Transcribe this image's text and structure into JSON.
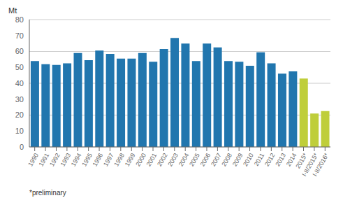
{
  "chart_data": {
    "type": "bar",
    "ylabel": "Mt",
    "annotations": [
      "*preliminary"
    ],
    "categories": [
      "1990",
      "1991",
      "1992",
      "1993",
      "1994",
      "1995",
      "1996",
      "1997",
      "1998",
      "1999",
      "2000",
      "2001",
      "2002",
      "2003",
      "2004",
      "2005",
      "2006",
      "2007",
      "2008",
      "2009",
      "2010",
      "2011",
      "2012",
      "2013",
      "2014",
      "2015*",
      "I-II/2015*",
      "I-II/2016*"
    ],
    "values": [
      54,
      52,
      51.5,
      52.5,
      59,
      54.5,
      60.5,
      58.5,
      55.5,
      55.5,
      59,
      53.5,
      61.5,
      68.5,
      65,
      54,
      65,
      62.5,
      54,
      53.5,
      51,
      59.5,
      52.5,
      46,
      47.5,
      43,
      21,
      22.5
    ],
    "colors": [
      "#2176AE",
      "#2176AE",
      "#2176AE",
      "#2176AE",
      "#2176AE",
      "#2176AE",
      "#2176AE",
      "#2176AE",
      "#2176AE",
      "#2176AE",
      "#2176AE",
      "#2176AE",
      "#2176AE",
      "#2176AE",
      "#2176AE",
      "#2176AE",
      "#2176AE",
      "#2176AE",
      "#2176AE",
      "#2176AE",
      "#2176AE",
      "#2176AE",
      "#2176AE",
      "#2176AE",
      "#2176AE",
      "#BFCE3A",
      "#BFCE3A",
      "#BFCE3A"
    ],
    "ylim": [
      0,
      80
    ],
    "yticks": [
      0,
      10,
      20,
      30,
      40,
      50,
      60,
      70,
      80
    ],
    "grid": true
  }
}
